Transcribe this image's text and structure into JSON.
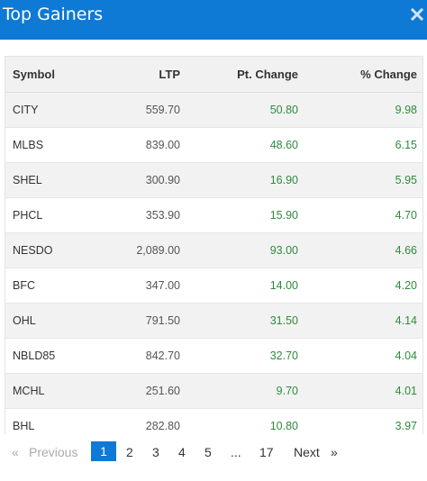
{
  "header": {
    "title": "Top Gainers",
    "close_icon": "close-icon"
  },
  "table": {
    "columns": [
      "Symbol",
      "LTP",
      "Pt. Change",
      "% Change"
    ],
    "rows": [
      {
        "symbol": "CITY",
        "ltp": "559.70",
        "pt_change": "50.80",
        "pct_change": "9.98"
      },
      {
        "symbol": "MLBS",
        "ltp": "839.00",
        "pt_change": "48.60",
        "pct_change": "6.15"
      },
      {
        "symbol": "SHEL",
        "ltp": "300.90",
        "pt_change": "16.90",
        "pct_change": "5.95"
      },
      {
        "symbol": "PHCL",
        "ltp": "353.90",
        "pt_change": "15.90",
        "pct_change": "4.70"
      },
      {
        "symbol": "NESDO",
        "ltp": "2,089.00",
        "pt_change": "93.00",
        "pct_change": "4.66"
      },
      {
        "symbol": "BFC",
        "ltp": "347.00",
        "pt_change": "14.00",
        "pct_change": "4.20"
      },
      {
        "symbol": "OHL",
        "ltp": "791.50",
        "pt_change": "31.50",
        "pct_change": "4.14"
      },
      {
        "symbol": "NBLD85",
        "ltp": "842.70",
        "pt_change": "32.70",
        "pct_change": "4.04"
      },
      {
        "symbol": "MCHL",
        "ltp": "251.60",
        "pt_change": "9.70",
        "pct_change": "4.01"
      },
      {
        "symbol": "BHL",
        "ltp": "282.80",
        "pt_change": "10.80",
        "pct_change": "3.97"
      }
    ]
  },
  "pagination": {
    "first_arrow": "«",
    "previous": "Previous",
    "pages": [
      "1",
      "2",
      "3",
      "4",
      "5"
    ],
    "ellipsis": "...",
    "last_page": "17",
    "next": "Next",
    "last_arrow": "»",
    "current": "1"
  },
  "colors": {
    "header_bg": "#0e7ad6",
    "positive": "#2e8b3e",
    "active_page": "#0e7ad6"
  }
}
